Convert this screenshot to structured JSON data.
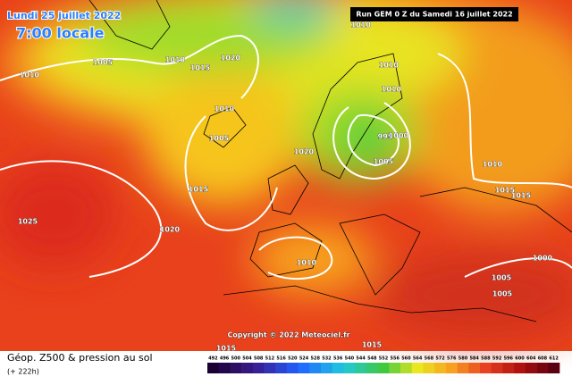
{
  "header": {
    "date": "Lundi 25 juillet 2022",
    "time": "7:00 locale",
    "run": "Run GEM 0 Z du Samedi 16 juillet 2022"
  },
  "copyright": "Copyright © 2022 Meteociel.fr",
  "footer": {
    "title": "Géop. Z500 & pression au sol",
    "lead": "(+ 222h)"
  },
  "isobars": [
    1010,
    1005,
    1010,
    1010,
    1015,
    1020,
    1010,
    1010,
    1010,
    1005,
    1020,
    995,
    1000,
    1005,
    1015,
    1010,
    1015,
    1015,
    1025,
    1020,
    1010,
    1000,
    1005,
    1005,
    1015,
    1015
  ],
  "legend": {
    "labels": [
      492,
      496,
      500,
      504,
      508,
      512,
      516,
      520,
      524,
      528,
      532,
      536,
      540,
      544,
      548,
      552,
      556,
      560,
      564,
      568,
      572,
      576,
      580,
      584,
      588,
      592,
      596,
      600,
      604,
      608,
      612
    ]
  }
}
